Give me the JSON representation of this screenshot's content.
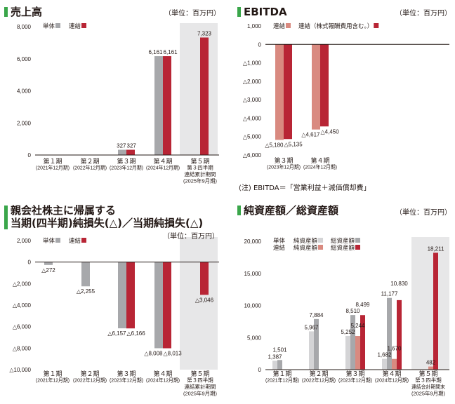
{
  "unit_label": "（単位：百万円）",
  "colors": {
    "standalone": "#a7a8ab",
    "consolidated": "#b82535",
    "consolidated_light": "#d98a80",
    "standalone_light": "#d4d4d6",
    "highlight_band": "#e7e7e8",
    "title_marker": "#3aa64a"
  },
  "ebitda_note": "(注) EBITDA＝「営業利益＋減価償却費」",
  "chart_data": [
    {
      "type": "bar",
      "title": "売上高",
      "ylim": [
        0,
        8000
      ],
      "yticks": [
        0,
        2000,
        4000,
        6000,
        8000
      ],
      "ytick_labels": [
        "0",
        "2,000",
        "4,000",
        "6,000",
        "8,000"
      ],
      "categories": [
        [
          "第１期",
          "(2021年12月期)"
        ],
        [
          "第２期",
          "(2022年12月期)"
        ],
        [
          "第３期",
          "(2023年12月期)"
        ],
        [
          "第４期",
          "(2024年12月期)"
        ],
        [
          "第５期",
          "第３四半期",
          "連結累計期間",
          "(2025年9月期)"
        ]
      ],
      "highlight_category": 4,
      "series": [
        {
          "name": "単体",
          "color_key": "standalone",
          "values": [
            null,
            null,
            327,
            6161,
            null
          ]
        },
        {
          "name": "連結",
          "color_key": "consolidated",
          "values": [
            null,
            null,
            327,
            6161,
            7323
          ]
        }
      ]
    },
    {
      "type": "bar",
      "title": "EBITDA",
      "ylim": [
        -6000,
        1000
      ],
      "yticks": [
        1000,
        0,
        -1000,
        -2000,
        -3000,
        -4000,
        -5000,
        -6000
      ],
      "ytick_labels": [
        "1,000",
        "0",
        "△1,000",
        "△2,000",
        "△3,000",
        "△4,000",
        "△5,000",
        "△6,000"
      ],
      "categories": [
        [
          "第３期",
          "(2023年12月期)"
        ],
        [
          "第４期",
          "(2024年12月期)"
        ]
      ],
      "highlight_category": null,
      "series": [
        {
          "name": "連結",
          "color_key": "consolidated_light",
          "values": [
            -5180,
            -4617
          ]
        },
        {
          "name": "連結（株式報酬費用含む。）",
          "color_key": "consolidated",
          "values": [
            -5135,
            -4450
          ]
        }
      ]
    },
    {
      "type": "bar",
      "title": "親会社株主に帰属する",
      "title_line2": "当期(四半期)純損失(△)／当期純損失(△)",
      "ylim": [
        -10000,
        2000
      ],
      "yticks": [
        2000,
        0,
        -2000,
        -4000,
        -6000,
        -8000,
        -10000
      ],
      "ytick_labels": [
        "2,000",
        "0",
        "△2,000",
        "△4,000",
        "△6,000",
        "△8,000",
        "△10,000"
      ],
      "categories": [
        [
          "第１期",
          "(2021年12月期)"
        ],
        [
          "第２期",
          "(2022年12月期)"
        ],
        [
          "第３期",
          "(2023年12月期)"
        ],
        [
          "第４期",
          "(2024年12月期)"
        ],
        [
          "第５期",
          "第３四半期",
          "連結累計期間",
          "(2025年9月期)"
        ]
      ],
      "highlight_category": 4,
      "series": [
        {
          "name": "単体",
          "color_key": "standalone",
          "values": [
            -272,
            -2255,
            -6157,
            -8008,
            null
          ]
        },
        {
          "name": "連結",
          "color_key": "consolidated",
          "values": [
            null,
            null,
            -6166,
            -8013,
            -3046
          ]
        }
      ]
    },
    {
      "type": "bar",
      "title": "純資産額／総資産額",
      "ylim": [
        0,
        20000
      ],
      "yticks": [
        0,
        5000,
        10000,
        15000,
        20000
      ],
      "ytick_labels": [
        "0",
        "5,000",
        "10,000",
        "15,000",
        "20,000"
      ],
      "categories": [
        [
          "第１期",
          "(2021年12月期)"
        ],
        [
          "第２期",
          "(2022年12月期)"
        ],
        [
          "第３期",
          "(2023年12月期)"
        ],
        [
          "第４期",
          "(2024年12月期)"
        ],
        [
          "第５期",
          "第３四半期",
          "連結会計期間末",
          "(2025年9月期)"
        ]
      ],
      "highlight_category": 4,
      "legend_groups": [
        "単体",
        "連結"
      ],
      "series": [
        {
          "name": "純資産額",
          "group": "単体",
          "color_key": "standalone_light",
          "values": [
            1387,
            5967,
            5252,
            1682,
            null
          ]
        },
        {
          "name": "総資産額",
          "group": "単体",
          "color_key": "standalone",
          "values": [
            1501,
            7884,
            8510,
            11177,
            null
          ]
        },
        {
          "name": "純資産額",
          "group": "連結",
          "color_key": "consolidated_light",
          "values": [
            null,
            null,
            5244,
            1670,
            482
          ]
        },
        {
          "name": "総資産額",
          "group": "連結",
          "color_key": "consolidated",
          "values": [
            null,
            null,
            8499,
            10830,
            18211
          ]
        }
      ]
    }
  ]
}
